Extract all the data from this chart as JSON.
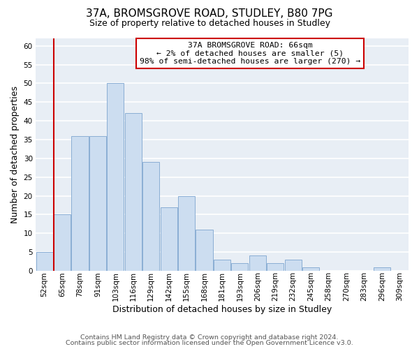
{
  "title": "37A, BROMSGROVE ROAD, STUDLEY, B80 7PG",
  "subtitle": "Size of property relative to detached houses in Studley",
  "xlabel": "Distribution of detached houses by size in Studley",
  "ylabel": "Number of detached properties",
  "bar_labels": [
    "52sqm",
    "65sqm",
    "78sqm",
    "91sqm",
    "103sqm",
    "116sqm",
    "129sqm",
    "142sqm",
    "155sqm",
    "168sqm",
    "181sqm",
    "193sqm",
    "206sqm",
    "219sqm",
    "232sqm",
    "245sqm",
    "258sqm",
    "270sqm",
    "283sqm",
    "296sqm",
    "309sqm"
  ],
  "bar_values": [
    5,
    15,
    36,
    36,
    50,
    42,
    29,
    17,
    20,
    11,
    3,
    2,
    4,
    2,
    3,
    1,
    0,
    0,
    0,
    1,
    0
  ],
  "bar_color": "#ccddf0",
  "bar_edge_color": "#8aaed4",
  "highlight_bar_index": 1,
  "highlight_color": "#cc0000",
  "annotation_line1": "37A BROMSGROVE ROAD: 66sqm",
  "annotation_line2": "← 2% of detached houses are smaller (5)",
  "annotation_line3": "98% of semi-detached houses are larger (270) →",
  "annotation_box_edge": "#cc0000",
  "ylim": [
    0,
    62
  ],
  "yticks": [
    0,
    5,
    10,
    15,
    20,
    25,
    30,
    35,
    40,
    45,
    50,
    55,
    60
  ],
  "footer1": "Contains HM Land Registry data © Crown copyright and database right 2024.",
  "footer2": "Contains public sector information licensed under the Open Government Licence v3.0.",
  "fig_background": "#ffffff",
  "plot_background": "#e8eef5",
  "grid_color": "#ffffff",
  "title_fontsize": 11,
  "subtitle_fontsize": 9,
  "axis_label_fontsize": 9,
  "tick_fontsize": 7.5,
  "footer_fontsize": 6.8
}
